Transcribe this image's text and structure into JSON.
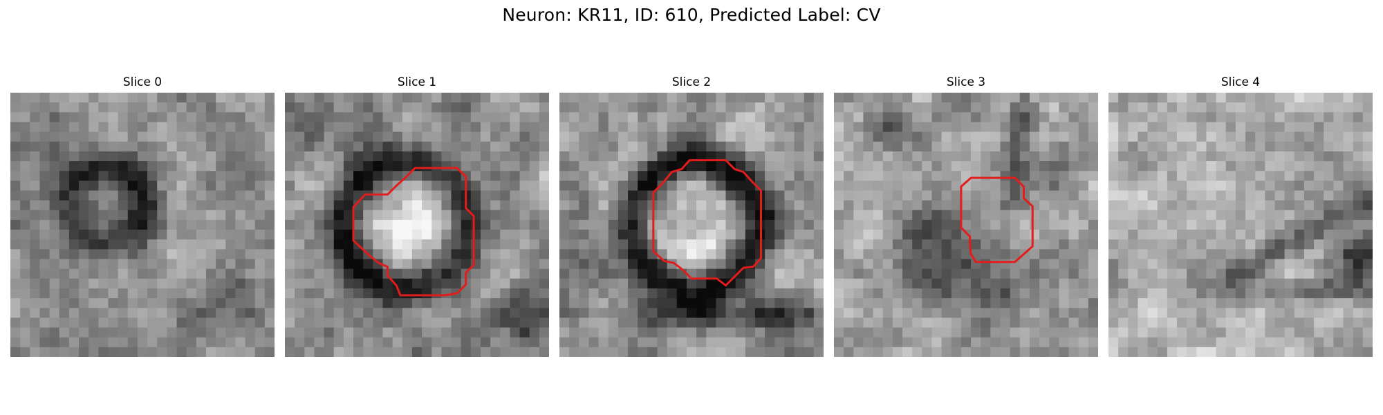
{
  "figure": {
    "title": "Neuron: KR11, ID: 610, Predicted Label: CV"
  },
  "panels": [
    {
      "title": "Slice 0",
      "has_roi": false
    },
    {
      "title": "Slice 1",
      "has_roi": true
    },
    {
      "title": "Slice 2",
      "has_roi": true
    },
    {
      "title": "Slice 3",
      "has_roi": true
    },
    {
      "title": "Slice 4",
      "has_roi": false
    }
  ],
  "colors": {
    "roi_outline": "#e31c1c",
    "background": "#ffffff"
  },
  "colormap": "grayscale"
}
